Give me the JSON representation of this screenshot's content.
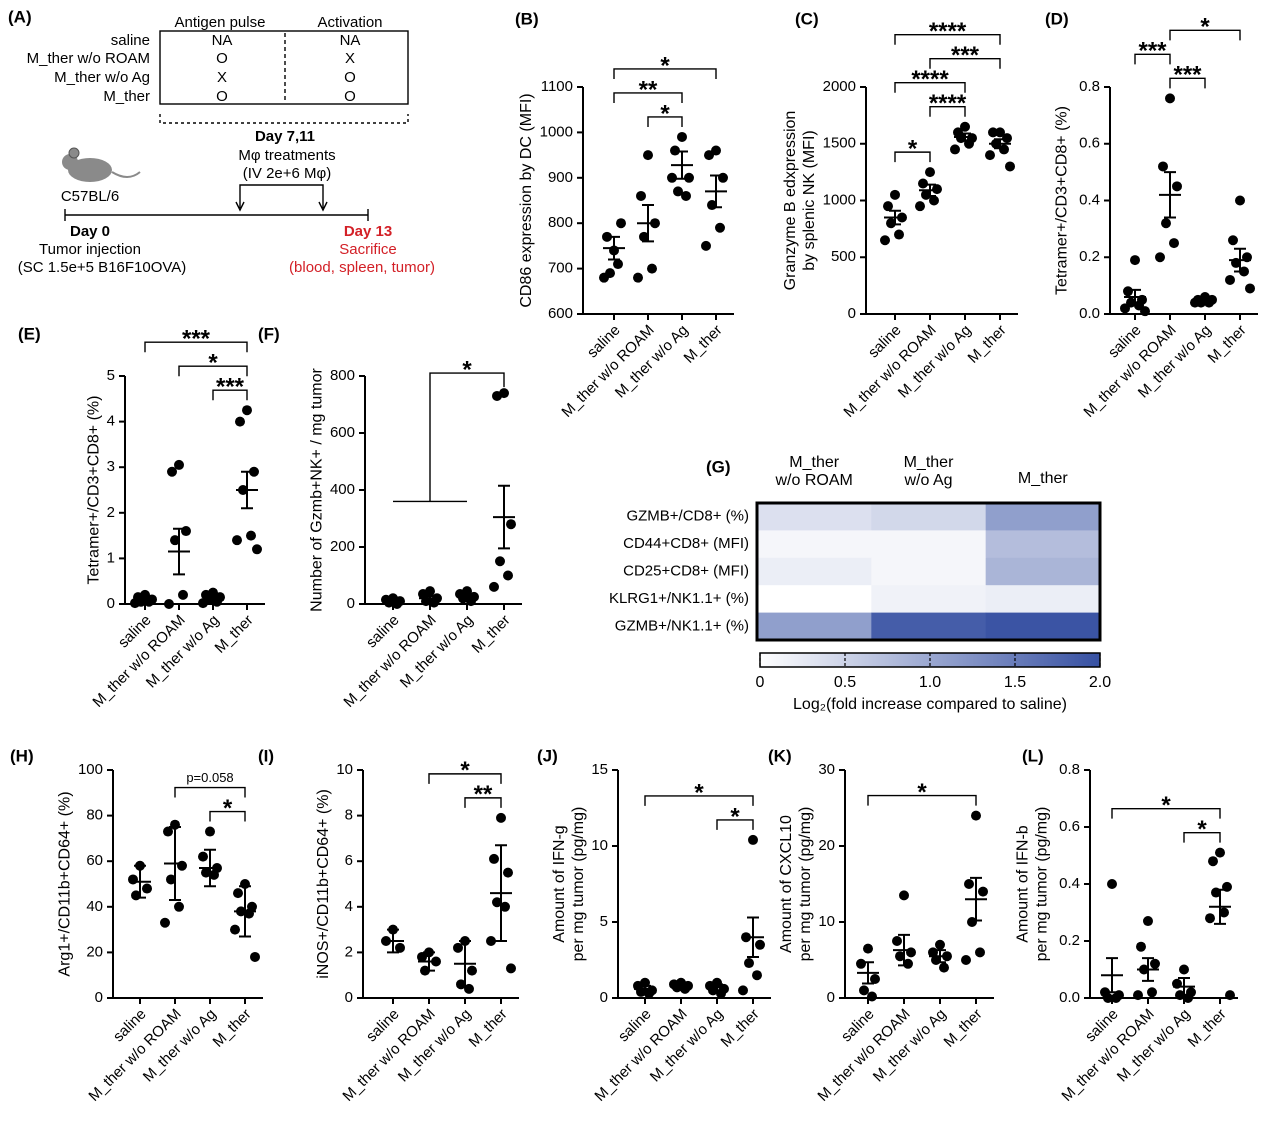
{
  "schematic": {
    "panel_label": "(A)",
    "column_headers": [
      "Antigen pulse",
      "Activation"
    ],
    "rows": [
      {
        "label": "saline",
        "cells": [
          "NA",
          "NA"
        ]
      },
      {
        "label": "M_ther w/o ROAM",
        "cells": [
          "O",
          "X"
        ]
      },
      {
        "label": "M_ther w/o Ag",
        "cells": [
          "X",
          "O"
        ]
      },
      {
        "label": "M_ther",
        "cells": [
          "O",
          "O"
        ]
      }
    ],
    "treatment_days": "Day 7,11",
    "treatment": [
      "Mφ treatments",
      "(IV 2e+6 Mφ)"
    ],
    "mouse": "C57BL/6",
    "start_day": "Day 0",
    "start_event": [
      "Tumor injection",
      "(SC 1.5e+5 B16F10OVA)"
    ],
    "end_day": "Day 13",
    "end_event": [
      "Sacrifice",
      "(blood, spleen, tumor)"
    ]
  },
  "chart_data": [
    {
      "type": "dot",
      "panel_label": "(B)",
      "ylabel": [
        "CD86 expression by DC (MFI)"
      ],
      "categories": [
        "saline",
        "M_ther w/o ROAM",
        "M_ther w/o Ag",
        "M_ther"
      ],
      "values": [
        [
          740,
          770,
          800,
          690,
          710,
          680
        ],
        [
          950,
          860,
          800,
          770,
          700,
          680
        ],
        [
          990,
          960,
          900,
          870,
          860,
          900
        ],
        [
          960,
          950,
          900,
          840,
          790,
          750
        ]
      ],
      "mean": [
        745,
        800,
        928,
        870
      ],
      "error": [
        25,
        40,
        30,
        35
      ],
      "ylim": [
        600,
        1100
      ],
      "yticks": [
        600,
        700,
        800,
        900,
        1000,
        1100
      ],
      "brackets": [
        {
          "left": "M_ther w/o ROAM",
          "right": "M_ther w/o Ag",
          "label": "*"
        },
        {
          "left": "saline",
          "right": "M_ther w/o Ag",
          "label": "**"
        },
        {
          "left": "saline",
          "right": "M_ther",
          "label": "*"
        }
      ]
    },
    {
      "type": "dot",
      "panel_label": "(C)",
      "ylabel": [
        "Granzyme B edxpression",
        "by splenic NK (MFI)"
      ],
      "categories": [
        "saline",
        "M_ther w/o ROAM",
        "M_ther w/o Ag",
        "M_ther"
      ],
      "values": [
        [
          1050,
          950,
          850,
          800,
          700,
          650
        ],
        [
          1250,
          1150,
          1100,
          1050,
          1000,
          950
        ],
        [
          1650,
          1600,
          1550,
          1550,
          1500,
          1450
        ],
        [
          1600,
          1600,
          1550,
          1500,
          1450,
          1400,
          1300
        ]
      ],
      "mean": [
        850,
        1090,
        1560,
        1500
      ],
      "error": [
        60,
        50,
        30,
        40
      ],
      "ylim": [
        0,
        2000
      ],
      "yticks": [
        0,
        500,
        1000,
        1500,
        2000
      ],
      "brackets": [
        {
          "left": "saline",
          "right": "M_ther w/o ROAM",
          "label": "*"
        },
        {
          "left": "M_ther w/o ROAM",
          "right": "M_ther w/o Ag",
          "label": "****"
        },
        {
          "left": "saline",
          "right": "M_ther w/o Ag",
          "label": "****"
        },
        {
          "left": "M_ther w/o ROAM",
          "right": "M_ther",
          "label": "***"
        },
        {
          "left": "saline",
          "right": "M_ther",
          "label": "****"
        }
      ]
    },
    {
      "type": "dot",
      "panel_label": "(D)",
      "ylabel": [
        "Tetramer+/CD3+CD8+ (%)"
      ],
      "categories": [
        "saline",
        "M_ther w/o ROAM",
        "M_ther w/o Ag",
        "M_ther"
      ],
      "values": [
        [
          0.19,
          0.08,
          0.05,
          0.04,
          0.03,
          0.02,
          0.01
        ],
        [
          0.76,
          0.52,
          0.45,
          0.32,
          0.25,
          0.2
        ],
        [
          0.06,
          0.05,
          0.05,
          0.04,
          0.04,
          0.04
        ],
        [
          0.4,
          0.26,
          0.2,
          0.18,
          0.15,
          0.12,
          0.09
        ]
      ],
      "mean": [
        0.06,
        0.42,
        0.045,
        0.19
      ],
      "error": [
        0.025,
        0.08,
        0.005,
        0.04
      ],
      "ylim": [
        0,
        0.8
      ],
      "yticks": [
        {
          "value": 0,
          "label": "0.0"
        },
        0.2,
        0.4,
        0.6,
        0.8
      ],
      "brackets": [
        {
          "left": "M_ther w/o ROAM",
          "right": "M_ther w/o Ag",
          "label": "***"
        },
        {
          "left": "saline",
          "right": "M_ther w/o ROAM",
          "label": "***"
        },
        {
          "left": "M_ther w/o ROAM",
          "right": "M_ther",
          "label": "*"
        }
      ]
    },
    {
      "type": "dot",
      "panel_label": "(E)",
      "ylabel": [
        "Tetramer+/CD3+CD8+ (%)"
      ],
      "categories": [
        "saline",
        "M_ther w/o ROAM",
        "M_ther w/o Ag",
        "M_ther"
      ],
      "values": [
        [
          0.2,
          0.15,
          0.1,
          0.05,
          0.05,
          0.02
        ],
        [
          3.05,
          2.9,
          1.6,
          1.4,
          0.2,
          0
        ],
        [
          0.25,
          0.2,
          0.15,
          0.1,
          0.05,
          0.02
        ],
        [
          4.25,
          4.0,
          2.9,
          2.5,
          1.5,
          1.4,
          1.2
        ]
      ],
      "mean": [
        0.08,
        1.15,
        0.1,
        2.5
      ],
      "error": [
        0.03,
        0.5,
        0.04,
        0.4
      ],
      "ylim": [
        0,
        5
      ],
      "yticks": [
        0,
        1,
        2,
        3,
        4,
        5
      ],
      "brackets": [
        {
          "left": "M_ther w/o Ag",
          "right": "M_ther",
          "label": "***"
        },
        {
          "left": "M_ther w/o ROAM",
          "right": "M_ther",
          "label": "*"
        },
        {
          "left": "saline",
          "right": "M_ther",
          "label": "***"
        }
      ]
    },
    {
      "type": "dot",
      "panel_label": "(F)",
      "ylabel": [
        "Number of Gzmb+NK+ / mg tumor"
      ],
      "categories": [
        "saline",
        "M_ther w/o ROAM",
        "M_ther w/o Ag",
        "M_ther"
      ],
      "values": [
        [
          20,
          15,
          10,
          5,
          0
        ],
        [
          45,
          35,
          20,
          10,
          5
        ],
        [
          45,
          35,
          25,
          20,
          10
        ],
        [
          740,
          730,
          280,
          150,
          100,
          60
        ]
      ],
      "mean": [
        10,
        20,
        28,
        305
      ],
      "error": [
        4,
        8,
        6,
        110
      ],
      "ylim": [
        0,
        800
      ],
      "yticks": [
        0,
        200,
        400,
        600,
        800
      ],
      "brackets": [
        {
          "left": [
            "saline",
            "M_ther w/o Ag"
          ],
          "right": "M_ther",
          "label": "*"
        }
      ]
    },
    {
      "type": "heatmap",
      "panel_label": "(G)",
      "columns": [
        [
          "M_ther",
          "w/o ROAM"
        ],
        [
          "M_ther",
          "w/o Ag"
        ],
        [
          "M_ther"
        ]
      ],
      "rows": [
        "GZMB+/CD8+ (%)",
        "CD44+CD8+ (MFI)",
        "CD25+CD8+ (MFI)",
        "KLRG1+/NK1.1+ (%)",
        "GZMB+/NK1.1+ (%)"
      ],
      "values": [
        [
          0.35,
          0.45,
          1.1
        ],
        [
          0.1,
          0.1,
          0.75
        ],
        [
          0.2,
          0.1,
          0.85
        ],
        [
          0,
          0.15,
          0.2
        ],
        [
          1.1,
          1.85,
          1.95
        ]
      ],
      "low_color": "#ffffff",
      "high_color": "#3650a2",
      "clim": [
        0,
        2
      ],
      "cticks": [
        0,
        0.5,
        {
          "value": 1,
          "label": "1.0"
        },
        1.5,
        {
          "value": 2,
          "label": "2.0"
        }
      ],
      "xlabel": "Log₂(fold increase compared to saline)"
    },
    {
      "type": "dot",
      "panel_label": "(H)",
      "ylabel": [
        "Arg1+/CD11b+CD64+ (%)"
      ],
      "categories": [
        "saline",
        "M_ther w/o ROAM",
        "M_ther w/o Ag",
        "M_ther"
      ],
      "values": [
        [
          58,
          52,
          48,
          45
        ],
        [
          76,
          73,
          58,
          52,
          40,
          33
        ],
        [
          73,
          62,
          57,
          55,
          54
        ],
        [
          50,
          46,
          40,
          38,
          37,
          30,
          18
        ]
      ],
      "mean": [
        51,
        59,
        57,
        38
      ],
      "error": [
        7,
        16,
        8,
        11
      ],
      "ylim": [
        0,
        100
      ],
      "yticks": [
        0,
        20,
        40,
        60,
        80,
        100
      ],
      "brackets": [
        {
          "left": "M_ther w/o Ag",
          "right": "M_ther",
          "label": "*"
        },
        {
          "left": "M_ther w/o ROAM",
          "right": "M_ther",
          "label": "p=0.058"
        }
      ]
    },
    {
      "type": "dot",
      "panel_label": "(I)",
      "ylabel": [
        "iNOS+/CD11b+CD64+ (%)"
      ],
      "categories": [
        "saline",
        "M_ther w/o ROAM",
        "M_ther w/o Ag",
        "M_ther"
      ],
      "values": [
        [
          3.0,
          2.5,
          2.2
        ],
        [
          2.0,
          1.8,
          1.6,
          1.2
        ],
        [
          2.5,
          2.2,
          1.2,
          0.6,
          0.4
        ],
        [
          7.9,
          6.1,
          5.5,
          4.2,
          4.0,
          2.5,
          1.3
        ]
      ],
      "mean": [
        2.5,
        1.6,
        1.5,
        4.6
      ],
      "error": [
        0.5,
        0.4,
        1.0,
        2.1
      ],
      "ylim": [
        0,
        10
      ],
      "yticks": [
        0,
        2,
        4,
        6,
        8,
        10
      ],
      "brackets": [
        {
          "left": "M_ther w/o Ag",
          "right": "M_ther",
          "label": "**"
        },
        {
          "left": "M_ther w/o ROAM",
          "right": "M_ther",
          "label": "*"
        }
      ]
    },
    {
      "type": "dot",
      "panel_label": "(J)",
      "ylabel": [
        "Amount of IFN-g",
        "per mg tumor (pg/mg)"
      ],
      "categories": [
        "saline",
        "M_ther w/o ROAM",
        "M_ther w/o Ag",
        "M_ther"
      ],
      "values": [
        [
          1.0,
          0.8,
          0.5,
          0.4,
          0.3
        ],
        [
          1.0,
          0.9,
          0.8,
          0.7,
          0.6
        ],
        [
          1.0,
          0.8,
          0.6,
          0.5,
          0.3
        ],
        [
          10.4,
          4.0,
          3.5,
          2.3,
          1.5,
          0.5
        ]
      ],
      "mean": [
        0.6,
        0.8,
        0.7,
        4.0
      ],
      "error": [
        0.2,
        0.15,
        0.2,
        1.3
      ],
      "ylim": [
        0,
        15
      ],
      "yticks": [
        0,
        5,
        10,
        15
      ],
      "brackets": [
        {
          "left": "M_ther w/o Ag",
          "right": "M_ther",
          "label": "*"
        },
        {
          "left": "saline",
          "right": "M_ther",
          "label": "*"
        }
      ]
    },
    {
      "type": "dot",
      "panel_label": "(K)",
      "ylabel": [
        "Amount of CXCL10",
        "per mg tumor (pg/mg)"
      ],
      "categories": [
        "saline",
        "M_ther w/o ROAM",
        "M_ther w/o Ag",
        "M_ther"
      ],
      "values": [
        [
          6.5,
          4.5,
          2.5,
          1.0,
          0.2
        ],
        [
          13.5,
          7.5,
          6.0,
          5.5,
          4.5
        ],
        [
          7.0,
          6.0,
          5.5,
          5.0,
          4.0
        ],
        [
          24,
          15,
          14,
          10,
          6,
          5
        ]
      ],
      "mean": [
        3.3,
        6.3,
        5.5,
        13
      ],
      "error": [
        1.4,
        2.0,
        0.8,
        2.8
      ],
      "ylim": [
        0,
        30
      ],
      "yticks": [
        0,
        10,
        20,
        30
      ],
      "brackets": [
        {
          "left": "saline",
          "right": "M_ther",
          "label": "*"
        }
      ]
    },
    {
      "type": "dot",
      "panel_label": "(L)",
      "ylabel": [
        "Amount of IFN-b",
        "per mg tumor (pg/mg)"
      ],
      "categories": [
        "saline",
        "M_ther w/o ROAM",
        "M_ther w/o Ag",
        "M_ther"
      ],
      "values": [
        [
          0.4,
          0.02,
          0.01,
          0,
          0
        ],
        [
          0.27,
          0.18,
          0.12,
          0.1,
          0.02,
          0.01
        ],
        [
          0.1,
          0.05,
          0.02,
          0.01,
          0
        ],
        [
          0.51,
          0.48,
          0.39,
          0.37,
          0.3,
          0.28,
          0.01
        ]
      ],
      "mean": [
        0.08,
        0.1,
        0.04,
        0.32
      ],
      "error": [
        0.06,
        0.04,
        0.03,
        0.06
      ],
      "ylim": [
        0,
        0.8
      ],
      "yticks": [
        {
          "value": 0,
          "label": "0.0"
        },
        0.2,
        0.4,
        0.6,
        0.8
      ],
      "brackets": [
        {
          "left": "M_ther w/o Ag",
          "right": "M_ther",
          "label": "*"
        },
        {
          "left": "saline",
          "right": "M_ther",
          "label": "*"
        }
      ]
    }
  ]
}
